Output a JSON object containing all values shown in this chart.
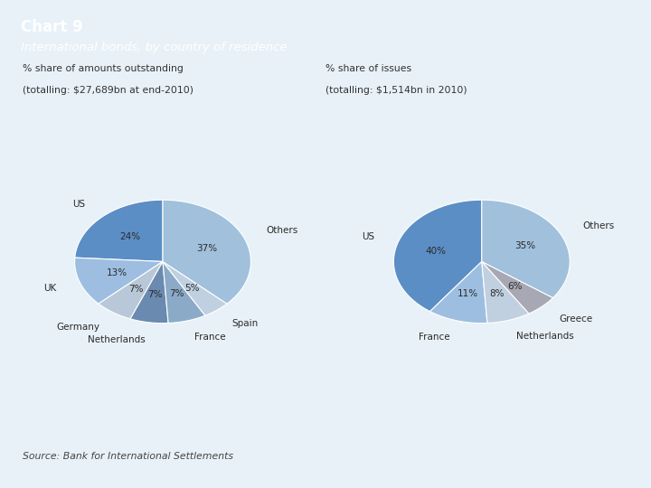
{
  "title": "Chart 9",
  "subtitle": "International bonds, by country of residence",
  "header_bg": "#5b8ec5",
  "bg_color": "#dce8f5",
  "body_bg": "#e8f1f8",
  "left_label_line1": "% share of amounts outstanding",
  "left_label_line2": "(totalling: $27,689bn at end-2010)",
  "right_label_line1": "% share of issues",
  "right_label_line2": "(totalling: $1,514bn in 2010)",
  "source": "Source: Bank for International Settlements",
  "pie1": {
    "labels": [
      "US",
      "UK",
      "Germany",
      "Netherlands",
      "France",
      "Spain",
      "Others"
    ],
    "values": [
      24,
      13,
      7,
      7,
      7,
      5,
      37
    ],
    "colors": [
      "#5b8ec5",
      "#9dbee0",
      "#b8c8d8",
      "#6a8ab0",
      "#8aaac8",
      "#c0d0e0",
      "#a0c0dc"
    ],
    "pct_labels": [
      "24%",
      "13%",
      "7%",
      "7%",
      "7%",
      "5%",
      "37%"
    ],
    "startangle": 90
  },
  "pie2": {
    "labels": [
      "US",
      "France",
      "Netherlands",
      "Greece",
      "Others"
    ],
    "values": [
      40,
      11,
      8,
      6,
      35
    ],
    "colors": [
      "#5b8ec5",
      "#9dbee0",
      "#c0d0e0",
      "#a8a8b4",
      "#a0c0dc"
    ],
    "pct_labels": [
      "40%",
      "11%",
      "8%",
      "6%",
      "35%"
    ],
    "startangle": 90
  }
}
